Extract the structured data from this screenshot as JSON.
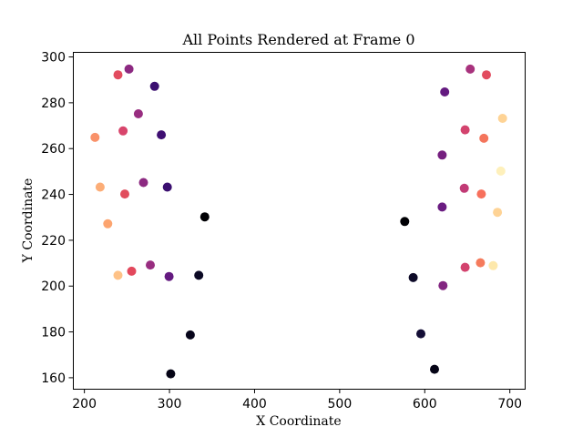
{
  "chart_data": {
    "type": "scatter",
    "title": "All Points Rendered at Frame 0",
    "xlabel": "X Coordinate",
    "ylabel": "Y Coordinate",
    "xlim": [
      187,
      718
    ],
    "ylim": [
      155,
      302
    ],
    "xticks": [
      200,
      300,
      400,
      500,
      600,
      700
    ],
    "yticks": [
      160,
      180,
      200,
      220,
      240,
      260,
      280,
      300
    ],
    "grid": false,
    "colormap": "magma",
    "points": [
      {
        "x": 302,
        "y": 161.5,
        "color": "#050416"
      },
      {
        "x": 325,
        "y": 178.5,
        "color": "#07051a"
      },
      {
        "x": 335,
        "y": 204.5,
        "color": "#0b0924"
      },
      {
        "x": 342,
        "y": 230,
        "color": "#000004"
      },
      {
        "x": 298,
        "y": 243,
        "color": "#3b0f70"
      },
      {
        "x": 291,
        "y": 265.8,
        "color": "#3f0f72"
      },
      {
        "x": 283,
        "y": 287,
        "color": "#3b0f70"
      },
      {
        "x": 300,
        "y": 204,
        "color": "#641a80"
      },
      {
        "x": 278,
        "y": 209,
        "color": "#982d80"
      },
      {
        "x": 270,
        "y": 245,
        "color": "#8c2981"
      },
      {
        "x": 264,
        "y": 275,
        "color": "#982d80"
      },
      {
        "x": 253,
        "y": 294.5,
        "color": "#8c2981"
      },
      {
        "x": 256,
        "y": 206.3,
        "color": "#e3485c"
      },
      {
        "x": 248,
        "y": 240,
        "color": "#e14d5d"
      },
      {
        "x": 246,
        "y": 267.5,
        "color": "#d8456c"
      },
      {
        "x": 240,
        "y": 292,
        "color": "#e24c5f"
      },
      {
        "x": 240,
        "y": 204.5,
        "color": "#fec287"
      },
      {
        "x": 228,
        "y": 227,
        "color": "#fca46f"
      },
      {
        "x": 219,
        "y": 243,
        "color": "#fcad77"
      },
      {
        "x": 213,
        "y": 264.7,
        "color": "#f9926a"
      },
      {
        "x": 612,
        "y": 163.5,
        "color": "#050416"
      },
      {
        "x": 596,
        "y": 179,
        "color": "#140e36"
      },
      {
        "x": 587,
        "y": 203.5,
        "color": "#0d0a28"
      },
      {
        "x": 577,
        "y": 228,
        "color": "#000004"
      },
      {
        "x": 621,
        "y": 234.3,
        "color": "#6a1c81"
      },
      {
        "x": 621,
        "y": 257,
        "color": "#751f7f"
      },
      {
        "x": 624,
        "y": 284.5,
        "color": "#641a80"
      },
      {
        "x": 622,
        "y": 200,
        "color": "#832681"
      },
      {
        "x": 654,
        "y": 294.5,
        "color": "#a8327d"
      },
      {
        "x": 648,
        "y": 208,
        "color": "#d3436e"
      },
      {
        "x": 647,
        "y": 242.5,
        "color": "#c13a75"
      },
      {
        "x": 648,
        "y": 268,
        "color": "#d3436e"
      },
      {
        "x": 673,
        "y": 292,
        "color": "#e24c5f"
      },
      {
        "x": 666,
        "y": 210,
        "color": "#f57b5c"
      },
      {
        "x": 667,
        "y": 240,
        "color": "#f7705c"
      },
      {
        "x": 670,
        "y": 264.3,
        "color": "#f4755c"
      },
      {
        "x": 681,
        "y": 208.7,
        "color": "#fde8ab"
      },
      {
        "x": 686,
        "y": 232,
        "color": "#fed395"
      },
      {
        "x": 690,
        "y": 250,
        "color": "#fef0bb"
      },
      {
        "x": 692,
        "y": 273,
        "color": "#fed395"
      }
    ]
  }
}
